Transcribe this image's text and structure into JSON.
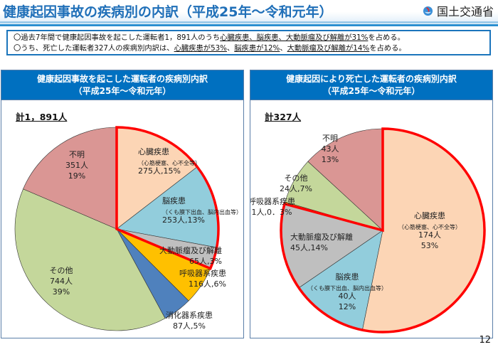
{
  "header": {
    "title": "健康起因事故の疾病別の内訳（平成25年～令和元年）",
    "logo_icon": "mlit-logo-icon",
    "logo_text": "国土交通省"
  },
  "summary": {
    "line1": {
      "pre": "〇過去7年間で健康起因事故を起こした運転者1，891人のうち",
      "underlined": "心臓疾患、脳疾患、大動脈瘤及び解離が31%",
      "post": "を占める。"
    },
    "line2": {
      "pre": "〇うち、死亡した運転者327人の疾病別内訳は、",
      "u1": "心臓疾患が53%",
      "sep1": "、",
      "u2": "脳疾患が12%",
      "sep2": "、",
      "u3": "大動脈瘤及び解離が14%",
      "post": "を占める。"
    }
  },
  "colors": {
    "header_blue": "#0070c0",
    "highlight_red": "#ff0000"
  },
  "page_number": "12",
  "chart_data": [
    {
      "type": "pie",
      "title": "健康起因事故を起こした運転者の疾病別内訳",
      "subtitle": "（平成25年～令和元年）",
      "total_label": "計1，891人",
      "start": "top",
      "direction": "clockwise",
      "highlighted": [
        "心臓疾患",
        "脳疾患",
        "大動脈瘤及び解離"
      ],
      "slices": [
        {
          "name": "心臓疾患",
          "note": "（心筋梗塞、心不全等）",
          "value": 275,
          "value_label": "275人,15%",
          "percent": 15,
          "color": "#fcd5b5"
        },
        {
          "name": "脳疾患",
          "note": "（くも膜下出血、脳内出血等）",
          "value": 253,
          "value_label": "253人,13%",
          "percent": 13,
          "color": "#92cddc"
        },
        {
          "name": "大動脈瘤及び解離",
          "note": "",
          "value": 65,
          "value_label": "65人,3%",
          "percent": 3,
          "color": "#bfbfbf"
        },
        {
          "name": "呼吸器系疾患",
          "note": "",
          "value": 116,
          "value_label": "116人,6%",
          "percent": 6,
          "color": "#ffc000"
        },
        {
          "name": "消化器系疾患",
          "note": "",
          "value": 87,
          "value_label": "87人,5%",
          "percent": 5,
          "color": "#4f81bd"
        },
        {
          "name": "その他",
          "note": "",
          "value": 744,
          "value_label": "744人",
          "percent": 39,
          "pct_label": "39%",
          "color": "#c4d79b"
        },
        {
          "name": "不明",
          "note": "",
          "value": 351,
          "value_label": "351人",
          "percent": 19,
          "pct_label": "19%",
          "color": "#da9694"
        }
      ]
    },
    {
      "type": "pie",
      "title": "健康起因により死亡した運転者の疾病別内訳",
      "subtitle": "（平成25年～令和元年）",
      "total_label": "計327人",
      "start": "top",
      "direction": "clockwise",
      "highlighted": [
        "心臓疾患",
        "脳疾患",
        "大動脈瘤及び解離"
      ],
      "slices": [
        {
          "name": "心臓疾患",
          "note": "（心筋梗塞、心不全等）",
          "value": 174,
          "value_label": "174人",
          "percent": 53,
          "pct_label": "53%",
          "color": "#fcd5b5"
        },
        {
          "name": "脳疾患",
          "note": "（くも膜下出血、脳内出血等）",
          "value": 40,
          "value_label": "40人",
          "percent": 12,
          "pct_label": "12%",
          "color": "#92cddc"
        },
        {
          "name": "大動脈瘤及び解離",
          "note": "",
          "value": 45,
          "value_label": "45人,14%",
          "percent": 14,
          "color": "#bfbfbf"
        },
        {
          "name": "呼吸器系疾患",
          "note": "",
          "value": 1,
          "value_label": "1人,0．3%",
          "percent": 0.3,
          "color": "#ffc000"
        },
        {
          "name": "その他",
          "note": "",
          "value": 24,
          "value_label": "24人,7%",
          "percent": 7,
          "color": "#c4d79b"
        },
        {
          "name": "不明",
          "note": "",
          "value": 43,
          "value_label": "43人",
          "percent": 13,
          "pct_label": "13%",
          "color": "#da9694"
        }
      ]
    }
  ]
}
